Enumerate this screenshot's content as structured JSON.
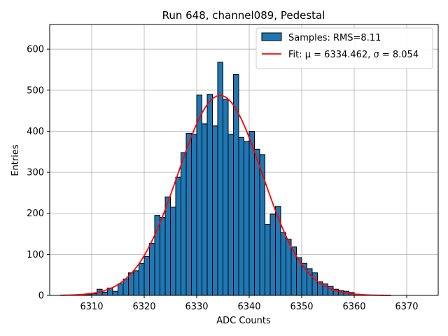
{
  "chart_data": {
    "type": "bar",
    "title": "Run 648, channel089, Pedestal",
    "xlabel": "ADC Counts",
    "ylabel": "Entries",
    "xlim": [
      6302,
      6376
    ],
    "ylim": [
      0,
      660
    ],
    "xticks": [
      6310,
      6320,
      6330,
      6340,
      6350,
      6360,
      6370
    ],
    "yticks": [
      0,
      100,
      200,
      300,
      400,
      500,
      600
    ],
    "grid": true,
    "legend_position": "top-right",
    "bin_width": 1,
    "series": [
      {
        "name": "Samples: RMS=8.11",
        "kind": "histogram",
        "color": "#1f77b4",
        "edge_color": "#000000",
        "bins": [
          6308,
          6309,
          6310,
          6311,
          6312,
          6313,
          6314,
          6315,
          6316,
          6317,
          6318,
          6319,
          6320,
          6321,
          6322,
          6323,
          6324,
          6325,
          6326,
          6327,
          6328,
          6329,
          6330,
          6331,
          6332,
          6333,
          6334,
          6335,
          6336,
          6337,
          6338,
          6339,
          6340,
          6341,
          6342,
          6343,
          6344,
          6345,
          6346,
          6347,
          6348,
          6349,
          6350,
          6351,
          6352,
          6353,
          6354,
          6355,
          6356,
          6357,
          6358,
          6359,
          6360
        ],
        "values": [
          1,
          2,
          4,
          15,
          8,
          18,
          10,
          28,
          40,
          55,
          60,
          78,
          95,
          127,
          195,
          190,
          240,
          215,
          288,
          348,
          395,
          393,
          488,
          418,
          490,
          413,
          568,
          478,
          393,
          538,
          385,
          375,
          400,
          356,
          343,
          173,
          198,
          217,
          153,
          137,
          118,
          92,
          78,
          65,
          55,
          33,
          28,
          22,
          15,
          12,
          10,
          7,
          3
        ]
      },
      {
        "name": "Fit: μ = 6334.462, σ = 8.054",
        "kind": "line",
        "color": "#ff0000",
        "mu": 6334.462,
        "sigma": 8.054,
        "amplitude": 487,
        "x_range": [
          6304,
          6367
        ]
      }
    ]
  }
}
